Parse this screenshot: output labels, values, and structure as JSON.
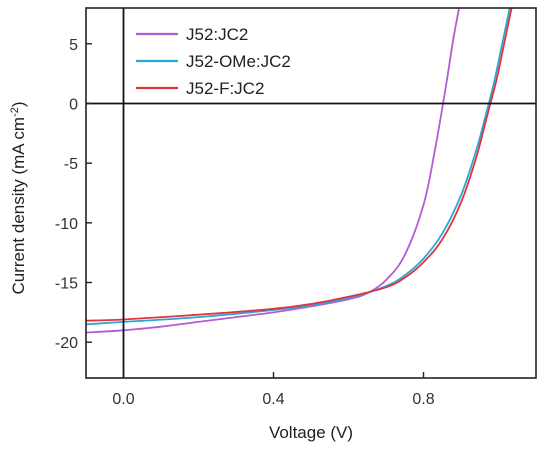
{
  "chart_data": {
    "type": "line",
    "title": "",
    "xlabel": "Voltage (V)",
    "ylabel": "Current density (mA cm",
    "ylabel_sup": "-2",
    "ylabel_close": ")",
    "xlim": [
      -0.1,
      1.1
    ],
    "ylim": [
      -23,
      8
    ],
    "x_ticks": [
      0.0,
      0.4,
      0.8
    ],
    "x_tick_labels": [
      "0.0",
      "0.4",
      "0.8"
    ],
    "y_ticks": [
      5,
      0,
      -5,
      -10,
      -15,
      -20
    ],
    "y_tick_labels": [
      "5",
      "0",
      "-5",
      "-10",
      "-15",
      "-20"
    ],
    "grid": false,
    "zero_lines": true,
    "legend_position": "top-left",
    "series": [
      {
        "name": "J52:JC2",
        "color": "#b45bd6",
        "x": [
          -0.1,
          0.0,
          0.1,
          0.2,
          0.3,
          0.4,
          0.5,
          0.6,
          0.65,
          0.7,
          0.75,
          0.8,
          0.83,
          0.86,
          0.88,
          0.895
        ],
        "y": [
          -19.2,
          -19.0,
          -18.7,
          -18.3,
          -17.9,
          -17.5,
          -17.0,
          -16.4,
          -15.9,
          -14.8,
          -12.7,
          -8.5,
          -4.0,
          1.5,
          5.5,
          8.0
        ]
      },
      {
        "name": "J52-OMe:JC2",
        "color": "#2ba6d8",
        "x": [
          -0.1,
          0.0,
          0.2,
          0.4,
          0.5,
          0.6,
          0.7,
          0.75,
          0.8,
          0.85,
          0.9,
          0.94,
          0.97,
          0.99,
          1.01,
          1.03
        ],
        "y": [
          -18.5,
          -18.3,
          -17.9,
          -17.3,
          -16.9,
          -16.3,
          -15.3,
          -14.4,
          -13.0,
          -10.9,
          -7.7,
          -4.0,
          -0.5,
          2.0,
          5.0,
          8.0
        ]
      },
      {
        "name": "J52-F:JC2",
        "color": "#e2343c",
        "x": [
          -0.1,
          0.0,
          0.2,
          0.4,
          0.5,
          0.6,
          0.7,
          0.75,
          0.8,
          0.85,
          0.9,
          0.94,
          0.97,
          0.995,
          1.015,
          1.035
        ],
        "y": [
          -18.2,
          -18.1,
          -17.7,
          -17.2,
          -16.8,
          -16.2,
          -15.4,
          -14.6,
          -13.3,
          -11.4,
          -8.3,
          -4.6,
          -1.0,
          2.0,
          5.0,
          8.0
        ]
      }
    ]
  }
}
